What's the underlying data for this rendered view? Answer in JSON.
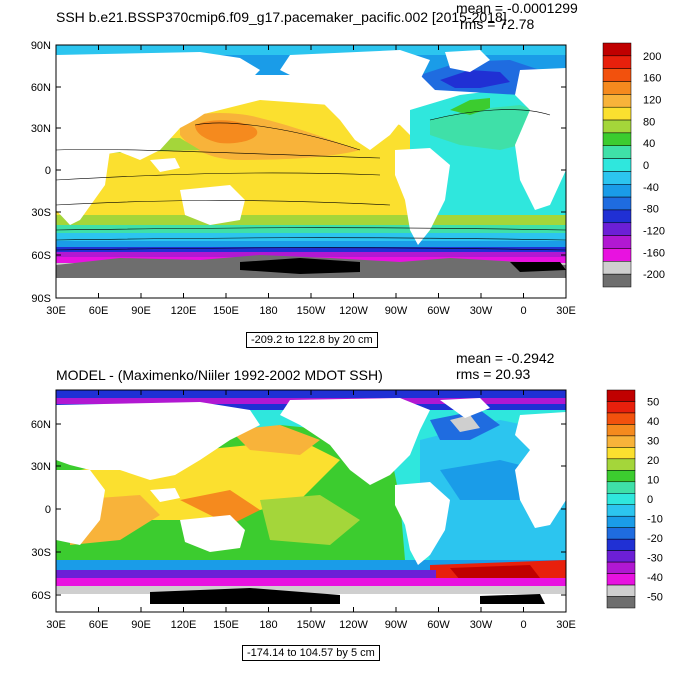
{
  "panels": [
    {
      "id": "top",
      "title": "SSH b.e21.BSSP370cmip6.f09_g17.pacemaker_pacific.002 [2015-2018]",
      "mean_text": "mean = -0.0001299",
      "rms_text": "rms = 72.78",
      "range_text": "-209.2 to 122.8 by 20 cm",
      "lat_labels": [
        "90N",
        "60N",
        "30N",
        "0",
        "30S",
        "60S",
        "90S"
      ],
      "lon_labels": [
        "30E",
        "60E",
        "90E",
        "120E",
        "150E",
        "180",
        "150W",
        "120W",
        "90W",
        "60W",
        "30W",
        "0",
        "30E"
      ],
      "colorbar": {
        "labels": [
          "200",
          "160",
          "120",
          "80",
          "40",
          "0",
          "-40",
          "-80",
          "-120",
          "-160",
          "-200"
        ],
        "colors": [
          "#c00000",
          "#e8200c",
          "#f2510d",
          "#f58a1e",
          "#f8b33a",
          "#fbe02f",
          "#a4d63a",
          "#3ccc2f",
          "#3fe0a8",
          "#2fe7dd",
          "#2cc5ef",
          "#1a9ce8",
          "#1f6ce0",
          "#2030d4",
          "#6c1fd6",
          "#b118d2",
          "#e812e0",
          "#cfcfcf",
          "#6e6e6e"
        ]
      }
    },
    {
      "id": "bottom",
      "title": "MODEL - (Maximenko/Niiler 1992-2002 MDOT SSH)",
      "mean_text": "mean = -0.2942",
      "rms_text": "rms = 20.93",
      "range_text": "-174.14 to 104.57 by 5 cm",
      "lat_labels": [
        "60N",
        "30N",
        "0",
        "30S",
        "60S"
      ],
      "lon_labels": [
        "30E",
        "60E",
        "90E",
        "120E",
        "150E",
        "180",
        "150W",
        "120W",
        "90W",
        "60W",
        "30W",
        "0",
        "30E"
      ],
      "colorbar": {
        "labels": [
          "50",
          "40",
          "30",
          "20",
          "10",
          "0",
          "-10",
          "-20",
          "-30",
          "-40",
          "-50"
        ],
        "colors": [
          "#c00000",
          "#e8200c",
          "#f2510d",
          "#f58a1e",
          "#f8b33a",
          "#fbe02f",
          "#a4d63a",
          "#3ccc2f",
          "#3fe0a8",
          "#2fe7dd",
          "#2cc5ef",
          "#1a9ce8",
          "#1f6ce0",
          "#2030d4",
          "#6c1fd6",
          "#b118d2",
          "#e812e0",
          "#cfcfcf",
          "#6e6e6e"
        ]
      }
    }
  ]
}
